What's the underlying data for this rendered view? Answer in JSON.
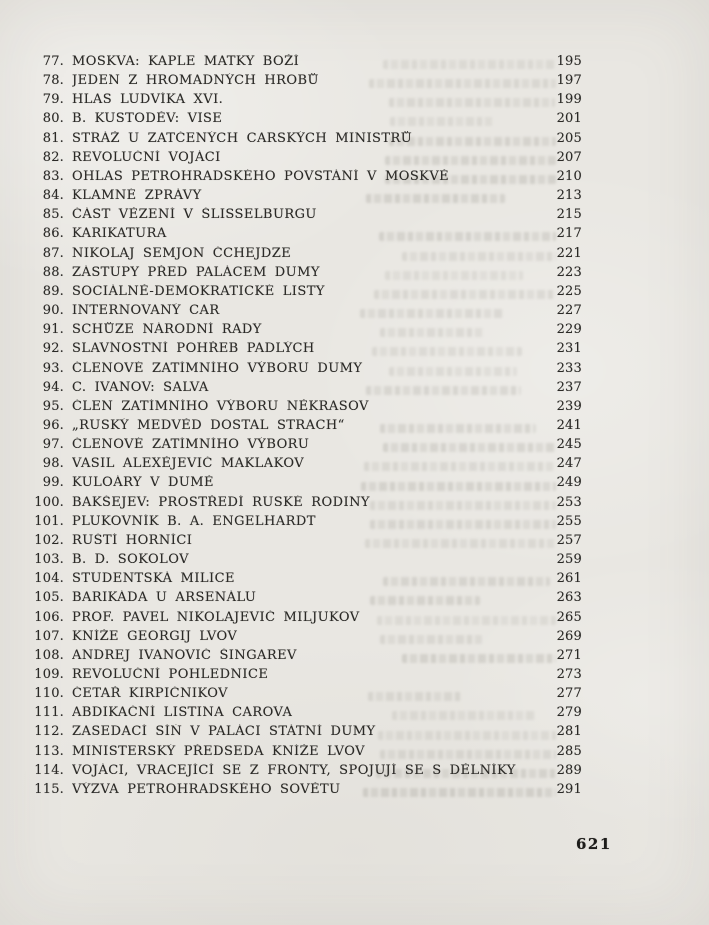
{
  "folio": "621",
  "entries": [
    {
      "num": "77.",
      "title": "MOSKVA: KAPLE MATKY BOŽÍ",
      "page": "195"
    },
    {
      "num": "78.",
      "title": "JEDEN Z HROMADNÝCH HROBŮ",
      "page": "197"
    },
    {
      "num": "79.",
      "title": "HLAS LUDVÍKA XVI.",
      "page": "199"
    },
    {
      "num": "80.",
      "title": "B. KUSTODĚV: VISE",
      "page": "201"
    },
    {
      "num": "81.",
      "title": "STRÁŽ U ZATČENÝCH CARSKÝCH MINISTRŮ",
      "page": "205"
    },
    {
      "num": "82.",
      "title": "REVOLUČNÍ VOJÁCI",
      "page": "207"
    },
    {
      "num": "83.",
      "title": "OHLAS PETROHRADSKÉHO POVSTÁNÍ V MOSKVĚ",
      "page": "210"
    },
    {
      "num": "84.",
      "title": "KLAMNÉ ZPRÁVY",
      "page": "213"
    },
    {
      "num": "85.",
      "title": "ČÁST VĚZENÍ V ŠLISSELBURGU",
      "page": "215"
    },
    {
      "num": "86.",
      "title": "KARIKATURA",
      "page": "217"
    },
    {
      "num": "87.",
      "title": "NIKOLAJ SEMJON ČCHEJDZE",
      "page": "221"
    },
    {
      "num": "88.",
      "title": "ZÁSTUPY PŘED PALÁCEM DUMY",
      "page": "223"
    },
    {
      "num": "89.",
      "title": "SOCIÁLNĚ-DEMOKRATICKÉ LISTY",
      "page": "225"
    },
    {
      "num": "90.",
      "title": "INTERNOVANÝ CAR",
      "page": "227"
    },
    {
      "num": "91.",
      "title": "SCHŮZE NÁRODNÍ RADY",
      "page": "229"
    },
    {
      "num": "92.",
      "title": "SLAVNOSTNÍ POHŘEB PADLÝCH",
      "page": "231"
    },
    {
      "num": "93.",
      "title": "ČLENOVÉ ZATÍMNÍHO VÝBORU DUMY",
      "page": "233"
    },
    {
      "num": "94.",
      "title": "C. IVANOV: SALVA",
      "page": "237"
    },
    {
      "num": "95.",
      "title": "ČLEN ZATÍMNÍHO VÝBORU NĚKRASOV",
      "page": "239"
    },
    {
      "num": "96.",
      "title": "„RUSKÝ MEDVĚD DOSTAL STRACH“",
      "page": "241"
    },
    {
      "num": "97.",
      "title": "ČLENOVÉ ZATÍMNÍHO VÝBORU",
      "page": "245"
    },
    {
      "num": "98.",
      "title": "VASIL ALEXĚJEVIČ MAKLAKOV",
      "page": "247"
    },
    {
      "num": "99.",
      "title": "KULOÁRY V DUMĚ",
      "page": "249"
    },
    {
      "num": "100.",
      "title": "BAKŠEJEV: PROSTŘEDÍ RUSKÉ RODINY",
      "page": "253"
    },
    {
      "num": "101.",
      "title": "PLUKOVNÍK B. A. ENGELHARDT",
      "page": "255"
    },
    {
      "num": "102.",
      "title": "RUŠTÍ HORNÍCI",
      "page": "257"
    },
    {
      "num": "103.",
      "title": "B. D. SOKOLOV",
      "page": "259"
    },
    {
      "num": "104.",
      "title": "STUDENTSKÁ MILICE",
      "page": "261"
    },
    {
      "num": "105.",
      "title": "BARIKÁDA U ARSENÁLU",
      "page": "263"
    },
    {
      "num": "106.",
      "title": "PROF. PAVEL NIKOLAJEVIČ MILJUKOV",
      "page": "265"
    },
    {
      "num": "107.",
      "title": "KNÍŽE GEORGIJ LVOV",
      "page": "269"
    },
    {
      "num": "108.",
      "title": "ANDREJ IVANOVIČ ŠINGAREV",
      "page": "271"
    },
    {
      "num": "109.",
      "title": "REVOLUČNÍ POHLEDNICE",
      "page": "273"
    },
    {
      "num": "110.",
      "title": "ČETAŘ KIRPIČNIKOV",
      "page": "277"
    },
    {
      "num": "111.",
      "title": "ABDIKAČNÍ LISTINA CAROVA",
      "page": "279"
    },
    {
      "num": "112.",
      "title": "ZASEDACÍ SÍŇ V PALÁCI STÁTNÍ DUMY",
      "page": "281"
    },
    {
      "num": "113.",
      "title": "MINISTERSKÝ PŘEDSEDA KNÍŽE LVOV",
      "page": "285"
    },
    {
      "num": "114.",
      "title": "VOJÁCI, VRACEJÍCÍ SE Z FRONTY, SPOJUJÍ SE S DĚLNÍKY",
      "page": "289"
    },
    {
      "num": "115.",
      "title": "VÝZVA PETROHRADSKÉHO SOVĚTU",
      "page": "291"
    }
  ]
}
